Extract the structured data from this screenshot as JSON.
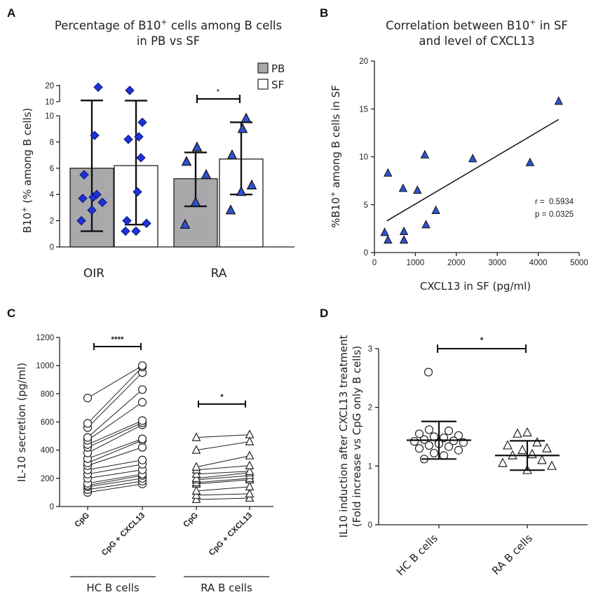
{
  "chart_data": [
    {
      "panel": "A",
      "type": "bar",
      "title_line1": "Percentage of B10",
      "title_sup": "+",
      "title_line1_rest": " cells among B cells",
      "title_line2": "in PB vs SF",
      "ylabel_pre": "B10",
      "ylabel_sup": "+",
      "ylabel_post": " (% among B cells)",
      "yticks_lower": [
        "0",
        "2",
        "4",
        "6",
        "8",
        "10"
      ],
      "yticks_upper": [
        "10",
        "20"
      ],
      "ylim": [
        0,
        20
      ],
      "axis_break": 10,
      "categories": [
        "OIR",
        "RA"
      ],
      "legend": [
        {
          "name": "PB",
          "color": "#a9a9ab"
        },
        {
          "name": "SF",
          "color": "#ffffff"
        }
      ],
      "series": [
        {
          "name": "PB",
          "category": "OIR",
          "mean": 6.0,
          "sd_low": 1.2,
          "sd_high": 10.8,
          "points": [
            2.0,
            2.8,
            3.4,
            3.7,
            3.8,
            4.0,
            5.5,
            8.5,
            19.0
          ]
        },
        {
          "name": "SF",
          "category": "OIR",
          "mean": 6.2,
          "sd_low": 1.7,
          "sd_high": 10.7,
          "points": [
            1.2,
            1.2,
            1.8,
            2.0,
            4.2,
            6.8,
            8.2,
            8.4,
            9.5,
            17.0
          ]
        },
        {
          "name": "PB",
          "category": "RA",
          "mean": 5.2,
          "sd_low": 3.1,
          "sd_high": 7.2,
          "points": [
            1.7,
            3.4,
            5.5,
            6.5,
            7.6
          ]
        },
        {
          "name": "SF",
          "category": "RA",
          "mean": 6.7,
          "sd_low": 4.0,
          "sd_high": 9.5,
          "points": [
            2.8,
            4.2,
            4.7,
            7.0,
            9.0,
            9.8
          ]
        }
      ],
      "significance": [
        {
          "category": "RA",
          "label": "*"
        }
      ]
    },
    {
      "panel": "B",
      "type": "scatter",
      "title_line1_pre": "Correlation between B10",
      "title_sup": "+",
      "title_line1_post": "  in SF",
      "title_line2": "and level of CXCL13",
      "xlabel": "CXCL13 in SF (pg/ml)",
      "ylabel_pre": "%B10",
      "ylabel_sup": "+",
      "ylabel_post": " among B cells in SF",
      "xlim": [
        0,
        5000
      ],
      "ylim": [
        0,
        20
      ],
      "xticks": [
        "0",
        "1000",
        "2000",
        "3000",
        "4000",
        "5000"
      ],
      "yticks": [
        "0",
        "5",
        "10",
        "15",
        "20"
      ],
      "points": [
        {
          "x": 250,
          "y": 2.1
        },
        {
          "x": 330,
          "y": 1.3
        },
        {
          "x": 330,
          "y": 8.3
        },
        {
          "x": 700,
          "y": 6.7
        },
        {
          "x": 720,
          "y": 2.2
        },
        {
          "x": 720,
          "y": 1.3
        },
        {
          "x": 1050,
          "y": 6.5
        },
        {
          "x": 1230,
          "y": 10.2
        },
        {
          "x": 1260,
          "y": 2.9
        },
        {
          "x": 1500,
          "y": 4.4
        },
        {
          "x": 2400,
          "y": 9.8
        },
        {
          "x": 3800,
          "y": 9.4
        },
        {
          "x": 4500,
          "y": 15.8
        }
      ],
      "fit_line": {
        "x0": 300,
        "y0": 3.3,
        "x1": 4500,
        "y1": 13.9
      },
      "stats": {
        "r_label": "r =",
        "r_value": "0.5934",
        "p_label": "p =",
        "p_value": "0.0325"
      }
    },
    {
      "panel": "C",
      "type": "line",
      "ylabel": "IL-10 secretion (pg/ml)",
      "ylim": [
        0,
        1200
      ],
      "yticks": [
        "0",
        "200",
        "400",
        "600",
        "800",
        "1000",
        "1200"
      ],
      "xtick_labels": [
        "CpG",
        "CpG + CXCL13",
        "CpG",
        "CpG + CXCL13"
      ],
      "group_labels": [
        "HC B cells",
        "RA B cells"
      ],
      "significance": [
        {
          "group": "HC B cells",
          "label": "****"
        },
        {
          "group": "RA B cells",
          "label": "*"
        }
      ],
      "paired_hc": [
        [
          100,
          160
        ],
        [
          120,
          180
        ],
        [
          140,
          200
        ],
        [
          150,
          220
        ],
        [
          165,
          230
        ],
        [
          200,
          260
        ],
        [
          230,
          300
        ],
        [
          260,
          330
        ],
        [
          290,
          420
        ],
        [
          310,
          470
        ],
        [
          340,
          480
        ],
        [
          380,
          580
        ],
        [
          420,
          595
        ],
        [
          440,
          610
        ],
        [
          470,
          740
        ],
        [
          490,
          830
        ],
        [
          560,
          950
        ],
        [
          590,
          990
        ],
        [
          770,
          1000
        ]
      ],
      "paired_ra": [
        [
          50,
          60
        ],
        [
          80,
          90
        ],
        [
          110,
          140
        ],
        [
          160,
          190
        ],
        [
          170,
          200
        ],
        [
          190,
          220
        ],
        [
          200,
          240
        ],
        [
          230,
          250
        ],
        [
          260,
          290
        ],
        [
          280,
          360
        ],
        [
          400,
          460
        ],
        [
          490,
          510
        ]
      ]
    },
    {
      "panel": "D",
      "type": "scatter",
      "ylabel_line1": "IL10 induction after CXCL13 treatment",
      "ylabel_line2": "(Fold increase vs CpG only B cells)",
      "ylim": [
        0,
        3
      ],
      "yticks": [
        "0",
        "1",
        "2",
        "3"
      ],
      "categories": [
        "HC B cells",
        "RA B cells"
      ],
      "significance": [
        {
          "label": "*"
        }
      ],
      "groups": [
        {
          "name": "HC B cells",
          "mean": 1.44,
          "sd_low": 1.12,
          "sd_high": 1.76,
          "points": [
            2.6,
            1.62,
            1.6,
            1.55,
            1.52,
            1.5,
            1.48,
            1.45,
            1.43,
            1.42,
            1.4,
            1.4,
            1.38,
            1.35,
            1.33,
            1.3,
            1.27,
            1.22,
            1.18,
            1.12
          ]
        },
        {
          "name": "RA B cells",
          "mean": 1.18,
          "sd_low": 0.93,
          "sd_high": 1.43,
          "points": [
            1.57,
            1.55,
            1.4,
            1.35,
            1.3,
            1.27,
            1.2,
            1.18,
            1.1,
            1.05,
            1.0,
            0.93
          ]
        }
      ]
    }
  ]
}
